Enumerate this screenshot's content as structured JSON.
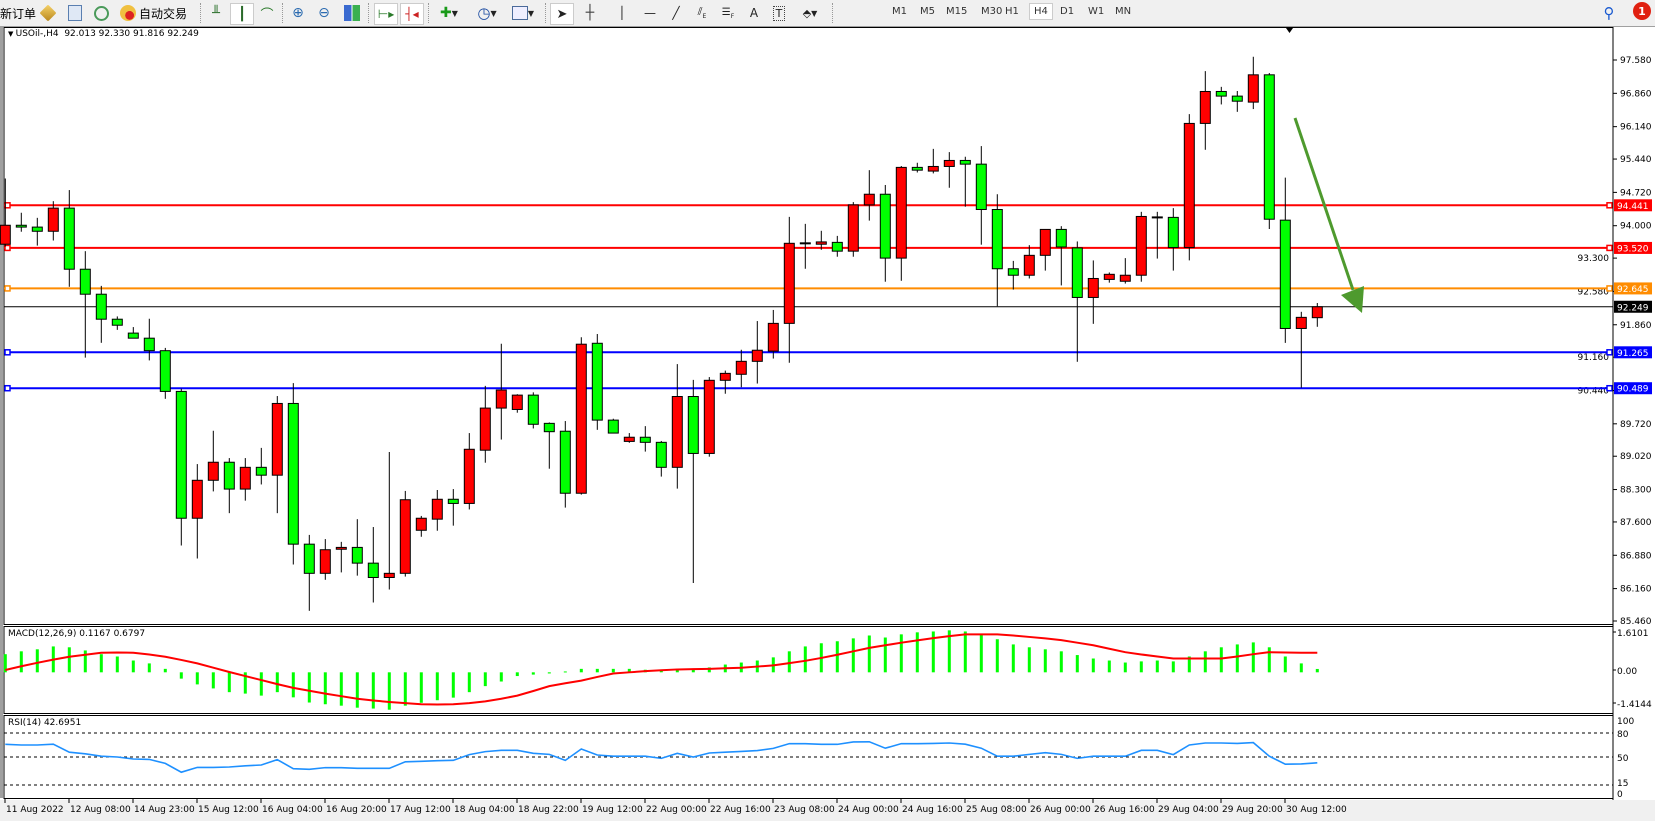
{
  "toolbar": {
    "new_order_label": "新订单",
    "auto_trading_label": "自动交易",
    "timeframes": [
      "M1",
      "M5",
      "M15",
      "M30",
      "H1",
      "H4",
      "D1",
      "W1",
      "MN"
    ],
    "selected_timeframe": "H4",
    "notification_count": "1",
    "icons": [
      "market-watch-icon",
      "navigator-icon",
      "terminal-icon",
      "auto-trading-icon",
      "bar-chart-icon",
      "candlestick-icon",
      "line-chart-icon",
      "zoom-in-icon",
      "zoom-out-icon",
      "tile-windows-icon",
      "auto-scroll-icon",
      "chart-shift-icon",
      "indicators-icon",
      "periods-icon",
      "templates-icon",
      "cursor-icon",
      "crosshair-icon",
      "vertical-line-icon",
      "horizontal-line-icon",
      "trendline-icon",
      "equidistant-channel-icon",
      "fibonacci-icon",
      "text-icon",
      "text-label-icon",
      "arrows-icon",
      "search-icon",
      "notification-icon"
    ]
  },
  "main_pane": {
    "title": "USOil-,H4  92.013 92.330 91.816 92.249"
  },
  "macd_pane": {
    "title": "MACD(12,26,9) 0.1167 0.6797"
  },
  "rsi_pane": {
    "title": "RSI(14) 42.6951"
  },
  "chart_data": {
    "type": "candlestick",
    "symbol": "USOil-",
    "timeframe": "H4",
    "last_bar": {
      "open": 92.013,
      "high": 92.33,
      "low": 91.816,
      "close": 92.249
    },
    "colors": {
      "bull": "#ff0000",
      "bear": "#00ff00",
      "outline": "#000000",
      "arrow": "#4e9a2e"
    },
    "candles_ohlc": [
      [
        93.6,
        95.02,
        93.55,
        94.01
      ],
      [
        94.01,
        94.28,
        93.87,
        93.97
      ],
      [
        93.97,
        94.17,
        93.57,
        93.88
      ],
      [
        93.88,
        94.53,
        93.68,
        94.38
      ],
      [
        94.38,
        94.77,
        92.68,
        93.06
      ],
      [
        93.06,
        93.45,
        91.15,
        92.52
      ],
      [
        92.52,
        92.7,
        91.47,
        91.98
      ],
      [
        91.98,
        92.04,
        91.75,
        91.85
      ],
      [
        91.68,
        91.81,
        91.57,
        91.57
      ],
      [
        91.57,
        91.99,
        91.09,
        91.3
      ],
      [
        91.3,
        91.36,
        90.26,
        90.42
      ],
      [
        90.42,
        90.48,
        87.09,
        87.68
      ],
      [
        87.68,
        88.85,
        86.81,
        88.5
      ],
      [
        88.5,
        89.57,
        88.26,
        88.89
      ],
      [
        88.89,
        88.98,
        87.79,
        88.31
      ],
      [
        88.31,
        88.98,
        88.06,
        88.78
      ],
      [
        88.78,
        89.2,
        88.41,
        88.61
      ],
      [
        88.61,
        90.32,
        87.79,
        90.16
      ],
      [
        90.16,
        90.6,
        86.68,
        87.12
      ],
      [
        87.12,
        87.32,
        85.68,
        86.49
      ],
      [
        86.49,
        87.23,
        86.35,
        87.0
      ],
      [
        87.01,
        87.17,
        86.51,
        87.05
      ],
      [
        87.05,
        87.66,
        86.44,
        86.71
      ],
      [
        86.71,
        87.49,
        85.86,
        86.4
      ],
      [
        86.4,
        89.11,
        86.14,
        86.49
      ],
      [
        86.49,
        88.27,
        86.42,
        88.08
      ],
      [
        87.42,
        87.73,
        87.28,
        87.68
      ],
      [
        87.66,
        88.29,
        87.41,
        88.09
      ],
      [
        88.09,
        88.31,
        87.52,
        88.0
      ],
      [
        88.0,
        89.52,
        87.87,
        89.17
      ],
      [
        89.15,
        90.54,
        88.88,
        90.06
      ],
      [
        90.06,
        91.45,
        89.38,
        90.45
      ],
      [
        90.03,
        90.36,
        89.96,
        90.34
      ],
      [
        90.34,
        90.4,
        89.62,
        89.71
      ],
      [
        89.73,
        89.75,
        88.75,
        89.55
      ],
      [
        89.56,
        89.78,
        87.91,
        88.22
      ],
      [
        88.22,
        91.59,
        88.19,
        91.44
      ],
      [
        91.46,
        91.66,
        89.59,
        89.8
      ],
      [
        89.8,
        89.83,
        89.52,
        89.52
      ],
      [
        89.34,
        89.52,
        89.31,
        89.43
      ],
      [
        89.43,
        89.67,
        89.12,
        89.32
      ],
      [
        89.32,
        89.35,
        88.58,
        88.78
      ],
      [
        88.78,
        91.01,
        88.32,
        90.31
      ],
      [
        90.31,
        90.67,
        86.28,
        89.08
      ],
      [
        89.08,
        90.73,
        89.01,
        90.66
      ],
      [
        90.66,
        90.87,
        90.37,
        90.81
      ],
      [
        90.79,
        91.32,
        90.51,
        91.07
      ],
      [
        91.07,
        91.94,
        90.59,
        91.31
      ],
      [
        91.29,
        92.18,
        91.13,
        91.89
      ],
      [
        91.89,
        94.19,
        91.04,
        93.62
      ],
      [
        93.63,
        94.04,
        93.07,
        93.63
      ],
      [
        93.6,
        93.89,
        93.48,
        93.65
      ],
      [
        93.64,
        93.78,
        93.33,
        93.45
      ],
      [
        93.45,
        94.51,
        93.33,
        94.45
      ],
      [
        94.45,
        95.2,
        94.11,
        94.68
      ],
      [
        94.68,
        94.88,
        92.79,
        93.3
      ],
      [
        93.3,
        95.29,
        92.81,
        95.26
      ],
      [
        95.26,
        95.36,
        95.15,
        95.2
      ],
      [
        95.18,
        95.66,
        95.13,
        95.28
      ],
      [
        95.28,
        95.59,
        94.82,
        95.41
      ],
      [
        95.41,
        95.49,
        94.41,
        95.33
      ],
      [
        95.33,
        95.72,
        93.59,
        94.35
      ],
      [
        94.35,
        94.68,
        92.26,
        93.07
      ],
      [
        93.07,
        93.24,
        92.62,
        92.93
      ],
      [
        92.93,
        93.58,
        92.86,
        93.36
      ],
      [
        93.36,
        93.92,
        93.03,
        93.92
      ],
      [
        93.92,
        93.99,
        92.71,
        93.54
      ],
      [
        93.52,
        93.66,
        91.06,
        92.45
      ],
      [
        92.45,
        93.25,
        91.88,
        92.86
      ],
      [
        92.84,
        92.99,
        92.77,
        92.95
      ],
      [
        92.8,
        93.3,
        92.75,
        92.93
      ],
      [
        92.93,
        94.3,
        92.79,
        94.2
      ],
      [
        94.19,
        94.3,
        93.29,
        94.19
      ],
      [
        94.18,
        94.38,
        93.03,
        93.53
      ],
      [
        93.53,
        96.41,
        93.25,
        96.21
      ],
      [
        96.21,
        97.34,
        95.64,
        96.9
      ],
      [
        96.9,
        97.0,
        96.62,
        96.8
      ],
      [
        96.8,
        96.91,
        96.46,
        96.69
      ],
      [
        96.67,
        97.65,
        96.52,
        97.26
      ],
      [
        97.26,
        97.3,
        93.93,
        94.14
      ],
      [
        94.12,
        95.04,
        91.47,
        91.78
      ],
      [
        91.78,
        92.14,
        90.5,
        92.02
      ],
      [
        92.013,
        92.33,
        91.816,
        92.249
      ]
    ],
    "y_range": [
      85.46,
      97.58
    ],
    "y_ticks": [
      "97.580",
      "96.860",
      "96.140",
      "95.440",
      "94.720",
      "94.000",
      "93.300",
      "92.580",
      "91.860",
      "91.160",
      "90.440",
      "89.720",
      "89.020",
      "88.300",
      "87.600",
      "86.880",
      "86.160",
      "85.460"
    ],
    "x_tick_labels": [
      "11 Aug 2022",
      "12 Aug 08:00",
      "14 Aug 23:00",
      "15 Aug 12:00",
      "16 Aug 04:00",
      "16 Aug 20:00",
      "17 Aug 12:00",
      "18 Aug 04:00",
      "18 Aug 22:00",
      "19 Aug 12:00",
      "22 Aug 00:00",
      "22 Aug 16:00",
      "23 Aug 08:00",
      "24 Aug 00:00",
      "24 Aug 16:00",
      "25 Aug 08:00",
      "26 Aug 00:00",
      "26 Aug 16:00",
      "29 Aug 04:00",
      "29 Aug 20:00",
      "30 Aug 12:00"
    ],
    "horizontal_lines": [
      {
        "value": "94.441",
        "color": "#ff0000"
      },
      {
        "value": "93.520",
        "color": "#ff0000"
      },
      {
        "value": "92.645",
        "color": "#ff8c00"
      },
      {
        "value": "91.265",
        "color": "#0000ff"
      },
      {
        "value": "90.489",
        "color": "#0000ff"
      }
    ],
    "current_price": "92.249",
    "annotation": "down-arrow (green trend arrow)",
    "macd": {
      "params": "12,26,9",
      "range": [
        -1.4144,
        1.6101
      ],
      "ticks": [
        "1.6101",
        "0.00",
        "-1.4144"
      ],
      "histogram_color": "#00ff00",
      "signal_color": "#ff0000",
      "histogram": [
        0.63,
        0.73,
        0.8,
        0.9,
        0.87,
        0.76,
        0.63,
        0.55,
        0.41,
        0.31,
        0.12,
        -0.22,
        -0.42,
        -0.56,
        -0.69,
        -0.74,
        -0.81,
        -0.69,
        -0.87,
        -1.05,
        -1.11,
        -1.16,
        -1.23,
        -1.26,
        -1.3,
        -1.16,
        -1.06,
        -0.97,
        -0.88,
        -0.69,
        -0.48,
        -0.32,
        -0.13,
        -0.08,
        -0.04,
        0.03,
        0.12,
        0.12,
        0.12,
        0.12,
        0.09,
        0.08,
        0.12,
        0.09,
        0.17,
        0.27,
        0.34,
        0.41,
        0.52,
        0.73,
        0.9,
        1.01,
        1.08,
        1.18,
        1.28,
        1.21,
        1.32,
        1.39,
        1.42,
        1.46,
        1.42,
        1.32,
        1.15,
        0.97,
        0.87,
        0.8,
        0.73,
        0.6,
        0.48,
        0.41,
        0.34,
        0.38,
        0.41,
        0.38,
        0.55,
        0.73,
        0.87,
        0.97,
        1.04,
        0.87,
        0.55,
        0.31,
        0.1167
      ],
      "signal": [
        0.08,
        0.21,
        0.33,
        0.44,
        0.54,
        0.61,
        0.68,
        0.69,
        0.68,
        0.62,
        0.54,
        0.43,
        0.31,
        0.16,
        0.01,
        -0.13,
        -0.27,
        -0.41,
        -0.54,
        -0.64,
        -0.74,
        -0.83,
        -0.92,
        -0.98,
        -1.03,
        -1.07,
        -1.11,
        -1.12,
        -1.11,
        -1.07,
        -1.01,
        -0.92,
        -0.81,
        -0.65,
        -0.48,
        -0.38,
        -0.29,
        -0.16,
        -0.04,
        0.0,
        0.04,
        0.07,
        0.1,
        0.11,
        0.12,
        0.14,
        0.16,
        0.2,
        0.24,
        0.32,
        0.4,
        0.5,
        0.61,
        0.73,
        0.85,
        0.94,
        1.03,
        1.11,
        1.19,
        1.26,
        1.32,
        1.32,
        1.32,
        1.28,
        1.23,
        1.18,
        1.12,
        1.03,
        0.94,
        0.82,
        0.7,
        0.62,
        0.55,
        0.48,
        0.48,
        0.48,
        0.48,
        0.55,
        0.63,
        0.7,
        0.69,
        0.68,
        0.6797
      ]
    },
    "rsi": {
      "period": 14,
      "range": [
        0,
        100
      ],
      "ticks": [
        "100",
        "80",
        "50",
        "15",
        "0"
      ],
      "levels": [
        80,
        50,
        15
      ],
      "color": "#1e90ff",
      "values": [
        65.8,
        65,
        65,
        66,
        56,
        54,
        51,
        50,
        47.5,
        47,
        42,
        31,
        37,
        37,
        37.5,
        39,
        40,
        46.7,
        35.4,
        34.6,
        36.7,
        36.7,
        35.8,
        35.8,
        35.8,
        44,
        44.6,
        45.4,
        45.8,
        53,
        56.7,
        58.3,
        58.3,
        54.6,
        53.3,
        45.8,
        60,
        52.5,
        51,
        51,
        51,
        48.3,
        54.6,
        50,
        55,
        56,
        57,
        58,
        60.8,
        66.7,
        66.7,
        65.8,
        65.8,
        68.8,
        69,
        61,
        66.7,
        66.7,
        67,
        67.5,
        66,
        61,
        51,
        51,
        53.3,
        55.4,
        53.3,
        48.3,
        51,
        51,
        51,
        58.3,
        58.3,
        53,
        65,
        67.5,
        67.5,
        67,
        68,
        51,
        41,
        41.3,
        42.6951
      ]
    }
  }
}
